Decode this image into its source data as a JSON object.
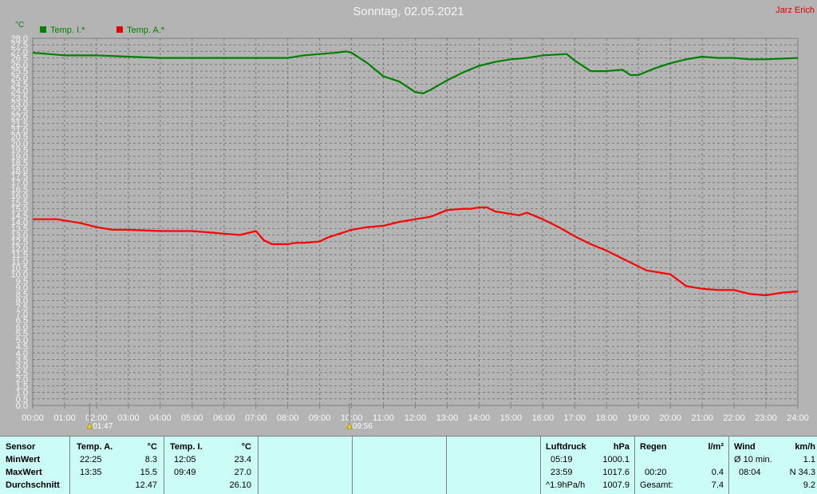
{
  "title": "Sonntag, 02.05.2021",
  "author": "Jarz Erich",
  "colors": {
    "inside": "#008000",
    "outside": "#ff0000",
    "background": "#b4b4b4",
    "table": "#ccfcf8"
  },
  "chart_data": {
    "type": "line",
    "unit": "°C",
    "ylim": [
      0,
      28
    ],
    "y_ticks": [
      "0.0",
      "0.5",
      "1.0",
      "1.5",
      "2.0",
      "2.5",
      "3.0",
      "3.5",
      "4.0",
      "4.5",
      "5.0",
      "5.5",
      "6.0",
      "6.5",
      "7.0",
      "7.5",
      "8.0",
      "8.5",
      "9.0",
      "9.5",
      "10.0",
      "10.5",
      "11.0",
      "11.5",
      "12.0",
      "12.5",
      "13.0",
      "13.5",
      "14.0",
      "14.5",
      "15.0",
      "15.5",
      "16.0",
      "16.5",
      "17.0",
      "17.5",
      "18.0",
      "18.5",
      "19.0",
      "19.5",
      "20.0",
      "20.5",
      "21.0",
      "21.5",
      "22.0",
      "22.5",
      "23.0",
      "23.5",
      "24.0",
      "24.5",
      "25.0",
      "25.5",
      "26.0",
      "26.5",
      "27.0",
      "27.5",
      "28.0"
    ],
    "x_ticks": [
      "00:00",
      "01:00",
      "02:00",
      "03:00",
      "04:00",
      "05:00",
      "06:00",
      "07:00",
      "08:00",
      "09:00",
      "10:00",
      "11:00",
      "12:00",
      "13:00",
      "14:00",
      "15:00",
      "16:00",
      "17:00",
      "18:00",
      "19:00",
      "20:00",
      "21:00",
      "22:00",
      "23:00",
      "24:00"
    ],
    "grid": true,
    "legend_position": "top-left",
    "markers": [
      {
        "time": "01:47",
        "label": "01:47"
      },
      {
        "time": "09:56",
        "label": "09:56"
      }
    ],
    "series": [
      {
        "name": "Temp. I.*",
        "color": "#008000",
        "x": [
          "00:00",
          "00:30",
          "01:00",
          "02:00",
          "03:00",
          "04:00",
          "05:00",
          "06:00",
          "07:00",
          "08:00",
          "08:30",
          "09:00",
          "09:30",
          "09:50",
          "10:00",
          "10:30",
          "11:00",
          "11:30",
          "12:00",
          "12:15",
          "12:30",
          "13:00",
          "13:30",
          "14:00",
          "14:30",
          "15:00",
          "15:30",
          "16:00",
          "16:45",
          "17:00",
          "17:30",
          "18:00",
          "18:30",
          "18:45",
          "19:00",
          "19:30",
          "20:00",
          "20:30",
          "21:00",
          "21:30",
          "22:00",
          "22:30",
          "23:00",
          "24:00"
        ],
        "y": [
          26.9,
          26.8,
          26.7,
          26.7,
          26.6,
          26.5,
          26.5,
          26.5,
          26.5,
          26.5,
          26.7,
          26.8,
          26.9,
          27.0,
          26.9,
          26.1,
          25.1,
          24.7,
          23.9,
          23.8,
          24.1,
          24.8,
          25.4,
          25.9,
          26.2,
          26.4,
          26.5,
          26.7,
          26.8,
          26.3,
          25.5,
          25.5,
          25.6,
          25.2,
          25.2,
          25.7,
          26.1,
          26.4,
          26.6,
          26.5,
          26.5,
          26.4,
          26.4,
          26.5
        ]
      },
      {
        "name": "Temp. A.*",
        "color": "#ff0000",
        "x": [
          "00:00",
          "00:45",
          "01:30",
          "02:00",
          "02:30",
          "03:00",
          "04:00",
          "05:00",
          "05:30",
          "06:00",
          "06:30",
          "07:00",
          "07:15",
          "07:30",
          "07:45",
          "08:00",
          "08:15",
          "08:30",
          "09:00",
          "09:15",
          "09:30",
          "10:00",
          "10:30",
          "11:00",
          "11:30",
          "12:00",
          "12:30",
          "13:00",
          "13:30",
          "13:45",
          "14:00",
          "14:15",
          "14:30",
          "15:00",
          "15:15",
          "15:30",
          "16:00",
          "16:30",
          "17:00",
          "17:30",
          "18:00",
          "18:30",
          "19:00",
          "19:15",
          "20:00",
          "20:30",
          "21:00",
          "21:30",
          "22:00",
          "22:30",
          "23:00",
          "23:30",
          "24:00"
        ],
        "y": [
          14.2,
          14.2,
          13.9,
          13.6,
          13.4,
          13.4,
          13.3,
          13.3,
          13.2,
          13.1,
          13.0,
          13.3,
          12.6,
          12.3,
          12.3,
          12.3,
          12.4,
          12.4,
          12.5,
          12.8,
          13.0,
          13.4,
          13.6,
          13.7,
          14.0,
          14.2,
          14.4,
          14.9,
          15.0,
          15.0,
          15.1,
          15.1,
          14.8,
          14.6,
          14.5,
          14.7,
          14.2,
          13.6,
          12.9,
          12.3,
          11.8,
          11.2,
          10.6,
          10.3,
          10.0,
          9.1,
          8.9,
          8.8,
          8.8,
          8.5,
          8.4,
          8.6,
          8.7
        ]
      }
    ]
  },
  "table": {
    "col1": {
      "header": "Sensor",
      "row1": "MinWert",
      "row2": "MaxWert",
      "row3": "Durchschnitt"
    },
    "col2": {
      "header": "Temp. A.",
      "unit": "°C",
      "min_time": "22:25",
      "min_val": "8.3",
      "max_time": "13:35",
      "max_val": "15.5",
      "avg": "12.47"
    },
    "col3": {
      "header": "Temp. I.",
      "unit": "°C",
      "min_time": "12:05",
      "min_val": "23.4",
      "max_time": "09:49",
      "max_val": "27.0",
      "avg": "26.10"
    },
    "pressure": {
      "header": "Luftdruck",
      "unit": "hPa",
      "r1_time": "05:19",
      "r1_val": "1000.1",
      "r2_time": "23:59",
      "r2_val": "1017.6",
      "r3_label": "^1.9hPa/h",
      "r3_val": "1007.9"
    },
    "rain": {
      "header": "Regen",
      "unit": "l/m²",
      "r2_time": "00:20",
      "r2_val": "0.4",
      "r3_label": "Gesamt:",
      "r3_val": "7.4"
    },
    "wind": {
      "header": "Wind",
      "unit": "km/h",
      "r1_label": "Ø 10 min.",
      "r1_val": "1.1",
      "r2_time": "08:04",
      "r2_val": "N 34.3",
      "r3_val": "9.2"
    }
  }
}
